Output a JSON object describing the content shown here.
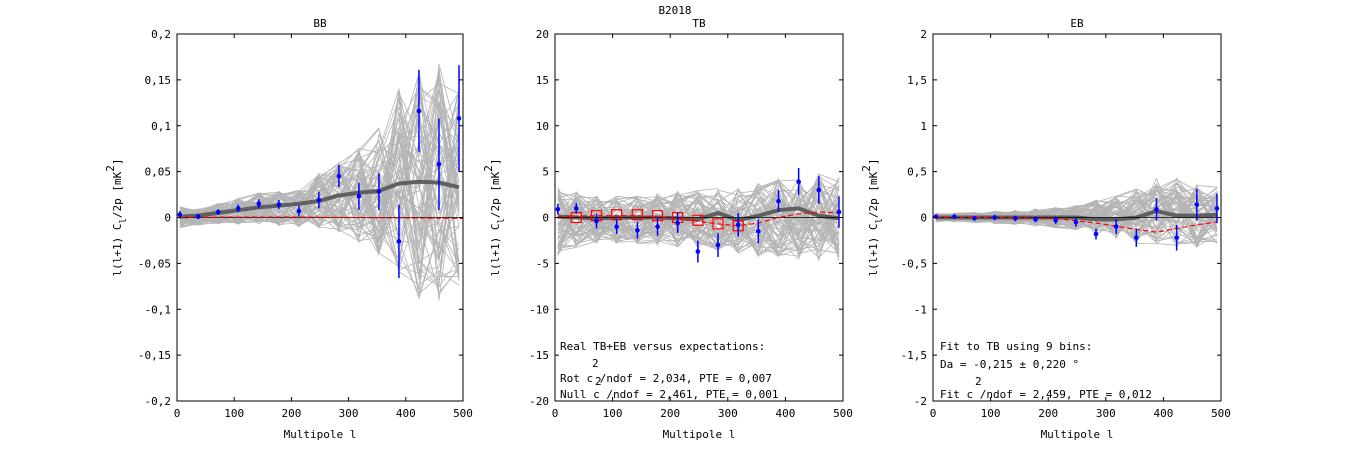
{
  "figure_title": "B2018",
  "chart_data": [
    {
      "type": "line",
      "title": "BB",
      "xlabel": "Multipole l",
      "ylabel": "l(l+1) C_l/2p [mK^2]",
      "xlim": [
        0,
        500
      ],
      "ylim": [
        -0.2,
        0.2
      ],
      "xticks": [
        0,
        100,
        200,
        300,
        400,
        500
      ],
      "yticks": [
        -0.2,
        -0.15,
        -0.1,
        -0.05,
        0,
        0.05,
        0.1,
        0.15,
        0.2
      ],
      "ytick_labels": [
        "-0,2",
        "-0,15",
        "-0,1",
        "-0,05",
        "0",
        "0,05",
        "0,1",
        "0,15",
        "0,2"
      ],
      "grid": false,
      "sim_band": [
        {
          "x": 5,
          "lo": -0.012,
          "hi": 0.013
        },
        {
          "x": 37,
          "lo": -0.009,
          "hi": 0.01
        },
        {
          "x": 72,
          "lo": -0.008,
          "hi": 0.016
        },
        {
          "x": 107,
          "lo": -0.009,
          "hi": 0.022
        },
        {
          "x": 143,
          "lo": -0.008,
          "hi": 0.028
        },
        {
          "x": 178,
          "lo": -0.01,
          "hi": 0.03
        },
        {
          "x": 213,
          "lo": -0.012,
          "hi": 0.035
        },
        {
          "x": 248,
          "lo": -0.015,
          "hi": 0.05
        },
        {
          "x": 283,
          "lo": -0.018,
          "hi": 0.065
        },
        {
          "x": 318,
          "lo": -0.03,
          "hi": 0.08
        },
        {
          "x": 353,
          "lo": -0.045,
          "hi": 0.105
        },
        {
          "x": 388,
          "lo": -0.07,
          "hi": 0.15
        },
        {
          "x": 423,
          "lo": -0.095,
          "hi": 0.17
        },
        {
          "x": 458,
          "lo": -0.1,
          "hi": 0.175
        },
        {
          "x": 493,
          "lo": -0.08,
          "hi": 0.15
        }
      ],
      "series": [
        {
          "name": "simulation mean",
          "color": "#606060",
          "x": [
            5,
            37,
            72,
            107,
            143,
            178,
            213,
            248,
            283,
            318,
            353,
            388,
            423,
            458,
            493
          ],
          "y": [
            0.001,
            0.002,
            0.005,
            0.008,
            0.011,
            0.013,
            0.015,
            0.018,
            0.024,
            0.027,
            0.029,
            0.037,
            0.039,
            0.038,
            0.033
          ]
        },
        {
          "name": "expectation",
          "color": "#ff0000",
          "dashed": true,
          "x": [
            5,
            100,
            200,
            300,
            400,
            500
          ],
          "y": [
            0.0,
            0.0005,
            0.0005,
            0.0,
            -0.0005,
            -0.001
          ]
        },
        {
          "name": "real data",
          "color": "#0000ff",
          "x": [
            5,
            37,
            72,
            107,
            143,
            178,
            213,
            248,
            283,
            318,
            353,
            388,
            423,
            458,
            493
          ],
          "y": [
            0.003,
            0.001,
            0.006,
            0.01,
            0.015,
            0.014,
            0.007,
            0.019,
            0.045,
            0.023,
            0.028,
            -0.026,
            0.116,
            0.058,
            0.108
          ],
          "err": [
            0.004,
            0.003,
            0.003,
            0.004,
            0.005,
            0.005,
            0.006,
            0.009,
            0.012,
            0.015,
            0.02,
            0.04,
            0.045,
            0.05,
            0.058
          ]
        }
      ]
    },
    {
      "type": "line",
      "title": "TB",
      "xlabel": "Multipole l",
      "ylabel": "l(l+1) C_l/2p [mK^2]",
      "xlim": [
        0,
        500
      ],
      "ylim": [
        -20,
        20
      ],
      "xticks": [
        0,
        100,
        200,
        300,
        400,
        500
      ],
      "yticks": [
        -20,
        -15,
        -10,
        -5,
        0,
        5,
        10,
        15,
        20
      ],
      "ytick_labels": [
        "-20",
        "-15",
        "-10",
        "-5",
        "0",
        "5",
        "10",
        "15",
        "20"
      ],
      "grid": false,
      "sim_band": [
        {
          "x": 5,
          "lo": -4.5,
          "hi": 3.5
        },
        {
          "x": 37,
          "lo": -3.5,
          "hi": 3.0
        },
        {
          "x": 72,
          "lo": -3.0,
          "hi": 2.5
        },
        {
          "x": 107,
          "lo": -3.0,
          "hi": 2.5
        },
        {
          "x": 143,
          "lo": -3.0,
          "hi": 2.5
        },
        {
          "x": 178,
          "lo": -3.2,
          "hi": 2.8
        },
        {
          "x": 213,
          "lo": -3.5,
          "hi": 3.0
        },
        {
          "x": 248,
          "lo": -3.8,
          "hi": 3.2
        },
        {
          "x": 283,
          "lo": -4.0,
          "hi": 3.5
        },
        {
          "x": 318,
          "lo": -4.2,
          "hi": 3.8
        },
        {
          "x": 353,
          "lo": -4.5,
          "hi": 4.0
        },
        {
          "x": 388,
          "lo": -4.5,
          "hi": 4.5
        },
        {
          "x": 423,
          "lo": -4.8,
          "hi": 4.8
        },
        {
          "x": 458,
          "lo": -5.0,
          "hi": 5.0
        },
        {
          "x": 493,
          "lo": -5.0,
          "hi": 5.0
        }
      ],
      "series": [
        {
          "name": "simulation mean",
          "color": "#606060",
          "x": [
            5,
            37,
            72,
            107,
            143,
            178,
            213,
            248,
            283,
            318,
            353,
            388,
            423,
            458,
            493
          ],
          "y": [
            0.1,
            0.0,
            -0.1,
            0.0,
            0.0,
            0.0,
            -0.1,
            -0.2,
            0.5,
            -0.3,
            0.2,
            0.8,
            1.0,
            0.2,
            -0.1
          ]
        },
        {
          "name": "expectation",
          "color": "#ff0000",
          "dashed": true,
          "x": [
            5,
            72,
            143,
            213,
            283,
            318,
            353,
            388,
            423,
            458,
            493
          ],
          "y": [
            0.1,
            0.2,
            0.2,
            -0.1,
            -0.7,
            -0.9,
            -0.6,
            0.0,
            0.4,
            0.6,
            0.5
          ]
        },
        {
          "name": "rotation model",
          "color": "#ff0000",
          "markers": "square",
          "x": [
            37,
            72,
            107,
            143,
            178,
            213,
            248,
            283,
            318
          ],
          "y": [
            0.0,
            0.2,
            0.3,
            0.3,
            0.2,
            0.0,
            -0.3,
            -0.7,
            -0.9
          ]
        },
        {
          "name": "real data",
          "color": "#0000ff",
          "x": [
            5,
            37,
            72,
            107,
            143,
            178,
            213,
            248,
            283,
            318,
            353,
            388,
            423,
            458,
            493
          ],
          "y": [
            0.9,
            1.0,
            -0.4,
            -1.0,
            -1.4,
            -1.0,
            -0.6,
            -3.7,
            -3.0,
            -0.8,
            -1.5,
            1.8,
            3.9,
            3.0,
            0.6
          ],
          "err": [
            0.6,
            0.6,
            0.8,
            0.8,
            0.9,
            1.0,
            1.1,
            1.2,
            1.3,
            1.3,
            1.3,
            1.2,
            1.5,
            1.5,
            1.7
          ]
        }
      ],
      "annotation": {
        "line1": "Real TB+EB versus expectations:",
        "line2_super": "2",
        "line2": "Rot c /ndof = 2,034, PTE = 0,007",
        "line3_super": "2",
        "line3": "Null c /ndof = 2,461, PTE = 0,001"
      }
    },
    {
      "type": "line",
      "title": "EB",
      "xlabel": "Multipole l",
      "ylabel": "l(l+1) C_l/2p [mK^2]",
      "xlim": [
        0,
        500
      ],
      "ylim": [
        -2,
        2
      ],
      "xticks": [
        0,
        100,
        200,
        300,
        400,
        500
      ],
      "yticks": [
        -2,
        -1.5,
        -1,
        -0.5,
        0,
        0.5,
        1,
        1.5,
        2
      ],
      "ytick_labels": [
        "-2",
        "-1,5",
        "-1",
        "-0,5",
        "0",
        "0,5",
        "1",
        "1,5",
        "2"
      ],
      "grid": false,
      "sim_band": [
        {
          "x": 5,
          "lo": -0.05,
          "hi": 0.05
        },
        {
          "x": 37,
          "lo": -0.05,
          "hi": 0.05
        },
        {
          "x": 72,
          "lo": -0.06,
          "hi": 0.06
        },
        {
          "x": 107,
          "lo": -0.07,
          "hi": 0.07
        },
        {
          "x": 143,
          "lo": -0.08,
          "hi": 0.08
        },
        {
          "x": 178,
          "lo": -0.1,
          "hi": 0.1
        },
        {
          "x": 213,
          "lo": -0.12,
          "hi": 0.12
        },
        {
          "x": 248,
          "lo": -0.15,
          "hi": 0.15
        },
        {
          "x": 283,
          "lo": -0.2,
          "hi": 0.2
        },
        {
          "x": 318,
          "lo": -0.25,
          "hi": 0.25
        },
        {
          "x": 353,
          "lo": -0.3,
          "hi": 0.35
        },
        {
          "x": 388,
          "lo": -0.35,
          "hi": 0.45
        },
        {
          "x": 423,
          "lo": -0.35,
          "hi": 0.45
        },
        {
          "x": 458,
          "lo": -0.35,
          "hi": 0.4
        },
        {
          "x": 493,
          "lo": -0.3,
          "hi": 0.35
        }
      ],
      "series": [
        {
          "name": "simulation mean",
          "color": "#606060",
          "x": [
            5,
            37,
            72,
            107,
            143,
            178,
            213,
            248,
            283,
            318,
            353,
            388,
            423,
            458,
            493
          ],
          "y": [
            0.0,
            0.0,
            0.0,
            0.0,
            0.0,
            0.0,
            0.0,
            0.0,
            -0.02,
            -0.02,
            0.0,
            0.07,
            0.02,
            0.02,
            0.03
          ]
        },
        {
          "name": "expectation",
          "color": "#ff0000",
          "dashed": true,
          "x": [
            5,
            107,
            213,
            283,
            353,
            388,
            423,
            458,
            493
          ],
          "y": [
            0.0,
            0.0,
            -0.01,
            -0.06,
            -0.13,
            -0.16,
            -0.12,
            -0.08,
            -0.05
          ]
        },
        {
          "name": "real data",
          "color": "#0000ff",
          "x": [
            5,
            37,
            72,
            107,
            143,
            178,
            213,
            248,
            283,
            318,
            353,
            388,
            423,
            458,
            493
          ],
          "y": [
            0.01,
            0.01,
            -0.01,
            0.0,
            -0.01,
            -0.02,
            -0.03,
            -0.05,
            -0.18,
            -0.1,
            -0.22,
            0.09,
            -0.22,
            0.14,
            0.1
          ],
          "err": [
            0.02,
            0.02,
            0.02,
            0.03,
            0.03,
            0.03,
            0.04,
            0.05,
            0.06,
            0.08,
            0.1,
            0.12,
            0.14,
            0.17,
            0.16
          ]
        }
      ],
      "annotation": {
        "line1": "Fit to TB using 9 bins:",
        "line2": "Da = -0,215 ± 0,220 °",
        "line3_super": "2",
        "line3": "Fit c /ndof = 2,459, PTE = 0,012"
      }
    }
  ]
}
